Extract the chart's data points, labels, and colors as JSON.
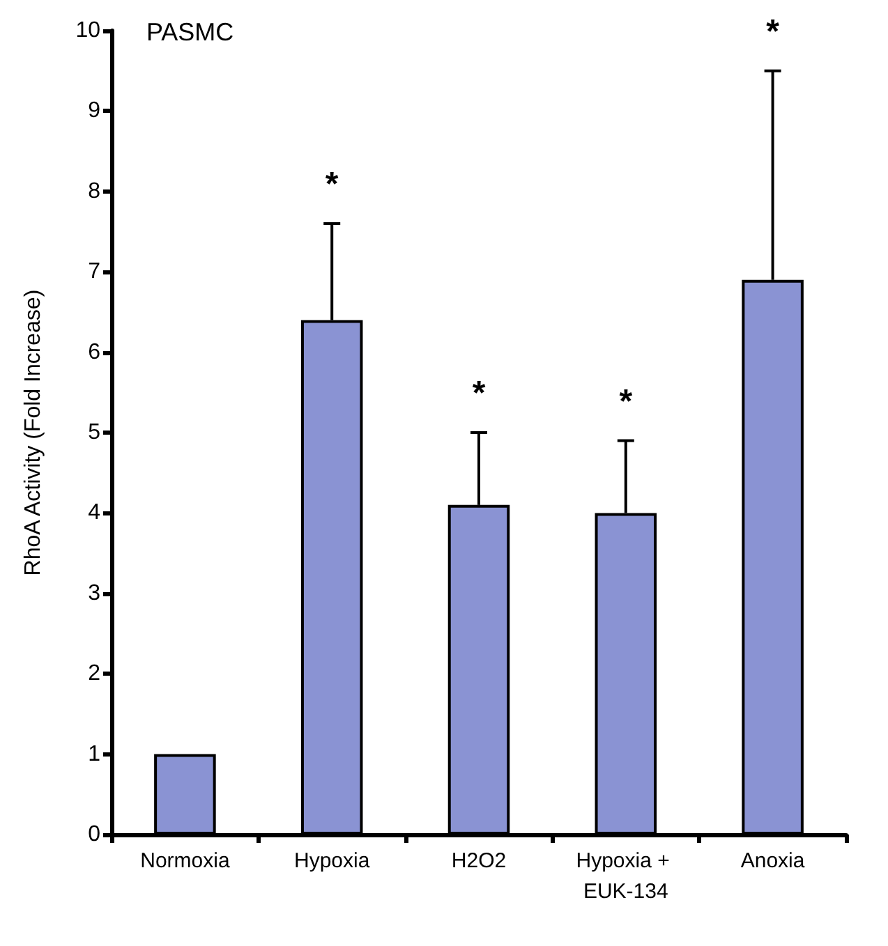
{
  "chart_data": {
    "type": "bar",
    "title": "PASMC",
    "ylabel": "RhoA Activity (Fold Increase)",
    "categories": [
      "Normoxia",
      "Hypoxia",
      "H2O2",
      "Hypoxia + EUK-134",
      "Anoxia"
    ],
    "values": [
      1.0,
      6.4,
      4.1,
      4.0,
      6.9
    ],
    "errors": [
      null,
      [
        6.4,
        7.6
      ],
      [
        4.1,
        5.0
      ],
      [
        4.0,
        4.9
      ],
      [
        6.9,
        9.5
      ]
    ],
    "color": "#8a93d3",
    "ylim": [
      0,
      10
    ],
    "yticks": [
      0,
      1,
      2,
      3,
      4,
      5,
      6,
      7,
      8,
      9,
      10
    ],
    "grid": false,
    "annotations": [
      "*",
      "*",
      "*",
      "*"
    ]
  }
}
